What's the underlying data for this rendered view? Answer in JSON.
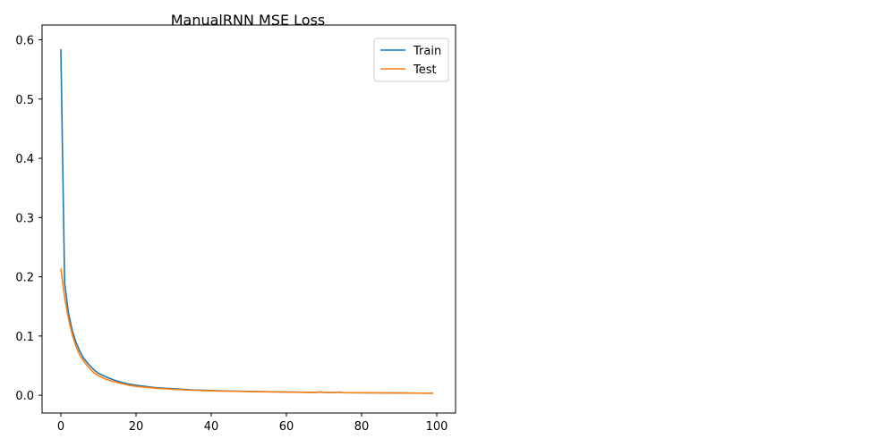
{
  "chart_data": {
    "type": "line",
    "title": "ManualRNN MSE Loss",
    "xlabel": "",
    "ylabel": "",
    "xlim": [
      -5,
      105
    ],
    "ylim": [
      -0.03,
      0.625
    ],
    "xticks": [
      0,
      20,
      40,
      60,
      80,
      100
    ],
    "xtick_labels": [
      "0",
      "20",
      "40",
      "60",
      "80",
      "100"
    ],
    "yticks": [
      0.0,
      0.1,
      0.2,
      0.3,
      0.4,
      0.5,
      0.6
    ],
    "ytick_labels": [
      "0.0",
      "0.1",
      "0.2",
      "0.3",
      "0.4",
      "0.5",
      "0.6"
    ],
    "grid": false,
    "legend_position": "top-right",
    "series": [
      {
        "name": "Train",
        "color": "#1f77b4",
        "x": [
          0,
          1,
          2,
          3,
          4,
          5,
          6,
          7,
          8,
          9,
          10,
          12,
          14,
          16,
          18,
          20,
          25,
          30,
          35,
          40,
          45,
          50,
          55,
          60,
          65,
          68,
          69,
          70,
          73,
          74,
          75,
          80,
          85,
          90,
          95,
          99
        ],
        "y": [
          0.584,
          0.19,
          0.14,
          0.11,
          0.09,
          0.075,
          0.063,
          0.055,
          0.048,
          0.042,
          0.037,
          0.031,
          0.026,
          0.022,
          0.019,
          0.017,
          0.013,
          0.011,
          0.009,
          0.008,
          0.007,
          0.0065,
          0.006,
          0.0055,
          0.005,
          0.0048,
          0.0055,
          0.0048,
          0.0045,
          0.0052,
          0.0045,
          0.0042,
          0.004,
          0.0038,
          0.0036,
          0.0035
        ]
      },
      {
        "name": "Test",
        "color": "#ff7f0e",
        "x": [
          0,
          1,
          2,
          3,
          4,
          5,
          6,
          7,
          8,
          9,
          10,
          12,
          14,
          16,
          18,
          20,
          25,
          30,
          35,
          40,
          45,
          50,
          55,
          60,
          65,
          68,
          69,
          70,
          73,
          74,
          75,
          80,
          85,
          90,
          95,
          99
        ],
        "y": [
          0.214,
          0.165,
          0.13,
          0.103,
          0.083,
          0.068,
          0.058,
          0.05,
          0.043,
          0.037,
          0.033,
          0.027,
          0.023,
          0.02,
          0.017,
          0.015,
          0.012,
          0.01,
          0.0085,
          0.0075,
          0.0068,
          0.0062,
          0.0057,
          0.0053,
          0.005,
          0.0048,
          0.006,
          0.0048,
          0.0045,
          0.0055,
          0.0045,
          0.0042,
          0.004,
          0.0038,
          0.0036,
          0.0035
        ]
      }
    ]
  }
}
